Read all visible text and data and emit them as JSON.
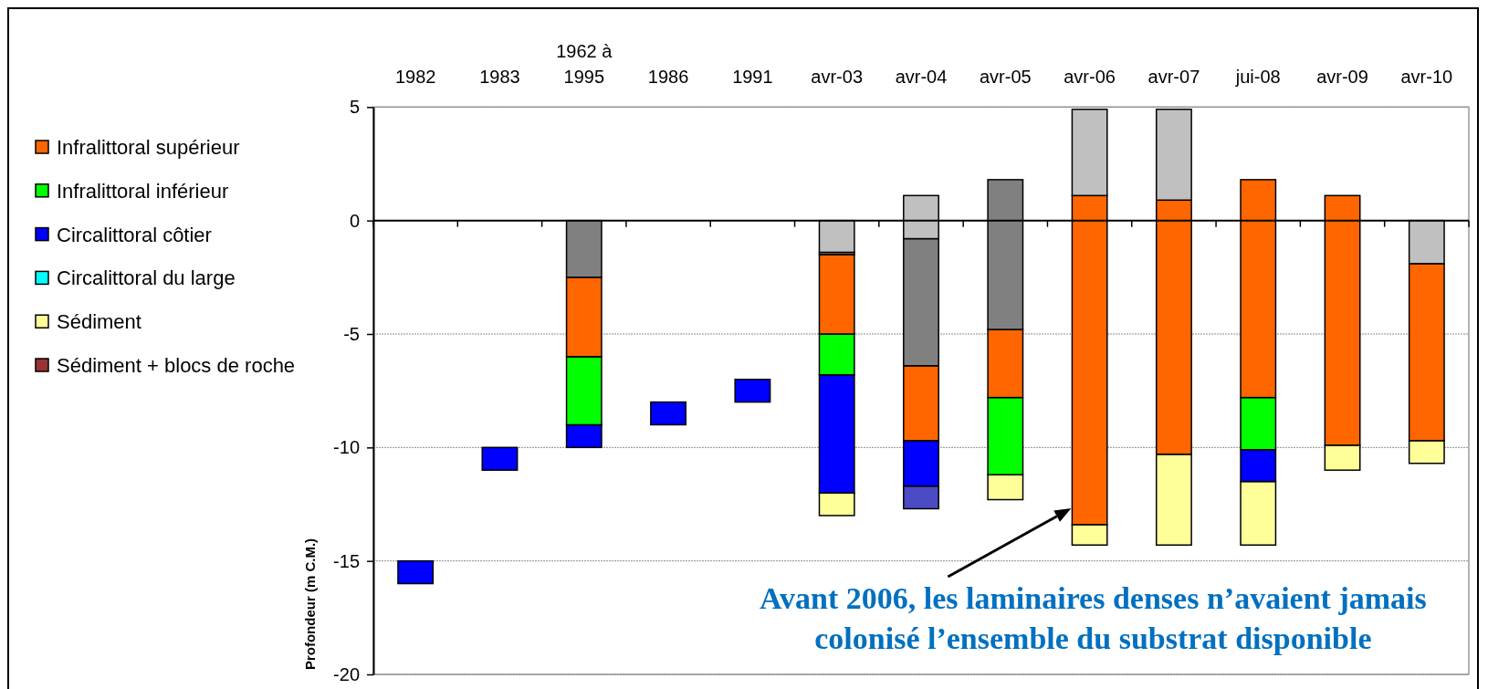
{
  "chart_data": {
    "type": "bar",
    "ylabel": "Profondeur (m C.M.)",
    "categories": [
      "1982",
      "1983",
      "1962 à 1995",
      "1986",
      "1991",
      "avr-03",
      "avr-04",
      "avr-05",
      "avr-06",
      "avr-07",
      "jui-08",
      "avr-09",
      "avr-10"
    ],
    "series": [
      {
        "color": "#4b4bc4",
        "base": [
          null,
          null,
          null,
          null,
          null,
          null,
          -12.7,
          null,
          null,
          null,
          null,
          null,
          null
        ],
        "values": [
          null,
          null,
          null,
          null,
          null,
          null,
          1.0,
          null,
          null,
          null,
          null,
          null,
          null
        ]
      },
      {
        "name": "Sédiment + blocs de roche",
        "color": "#993333",
        "values": [
          null,
          null,
          null,
          null,
          null,
          null,
          null,
          null,
          null,
          null,
          null,
          null,
          null
        ]
      },
      {
        "name": "Sédiment",
        "color": "#ffff99",
        "base": [
          null,
          null,
          null,
          null,
          null,
          -13,
          null,
          -12.3,
          -14.3,
          -14.3,
          -14.3,
          -11,
          -10.7
        ],
        "values": [
          null,
          null,
          null,
          null,
          null,
          1.0,
          null,
          1.1,
          0.9,
          4.0,
          2.8,
          1.1,
          1.0
        ]
      },
      {
        "name": "Circalittoral du large",
        "color": "#00ffff",
        "values": [
          null,
          null,
          null,
          null,
          null,
          null,
          null,
          null,
          null,
          null,
          null,
          null,
          null
        ]
      },
      {
        "name": "Circalittoral côtier",
        "color": "#0000ff",
        "base": [
          -16,
          -11,
          -10,
          -9,
          -8,
          -12,
          -11.7,
          null,
          null,
          null,
          -11.5,
          null,
          null
        ],
        "values": [
          1,
          1,
          1,
          1,
          1,
          5.2,
          2.0,
          null,
          null,
          null,
          1.4,
          null,
          null
        ]
      },
      {
        "name": "Infralittoral inférieur",
        "color": "#00ff00",
        "base": [
          null,
          null,
          -9,
          null,
          null,
          -6.8,
          null,
          -11.2,
          null,
          null,
          -10.1,
          null,
          null
        ],
        "values": [
          null,
          null,
          3,
          null,
          null,
          1.8,
          null,
          3.4,
          null,
          null,
          2.3,
          null,
          null
        ]
      },
      {
        "name": "Infralittoral supérieur",
        "color": "#ff6600",
        "base": [
          null,
          null,
          -6,
          null,
          null,
          -5,
          -9.7,
          -7.8,
          -13.4,
          -10.3,
          -7.8,
          -9.9,
          -9.7
        ],
        "values": [
          null,
          null,
          3.5,
          null,
          null,
          3.5,
          3.3,
          3.0,
          14.5,
          11.2,
          9.6,
          11.0,
          7.8
        ]
      },
      {
        "color": "#808080",
        "base": [
          null,
          null,
          -2.5,
          null,
          null,
          -1.5,
          -6.4,
          -4.8,
          null,
          null,
          null,
          null,
          null
        ],
        "values": [
          null,
          null,
          2.5,
          null,
          null,
          0.1,
          5.6,
          6.6,
          null,
          null,
          null,
          null,
          null
        ]
      },
      {
        "color": "#c0c0c0",
        "base": [
          null,
          null,
          null,
          null,
          null,
          -1.4,
          -0.8,
          null,
          1.1,
          0.9,
          null,
          null,
          -1.9
        ],
        "values": [
          null,
          null,
          null,
          null,
          null,
          1.4,
          1.9,
          null,
          3.8,
          4.0,
          null,
          null,
          1.9
        ]
      }
    ],
    "ylim": [
      -20,
      5
    ],
    "yticks": [
      -20,
      -15,
      -10,
      -5,
      0,
      5
    ],
    "grid": "y",
    "legend": "left",
    "annotations": [
      "Avant 2006, les laminaires denses n’avaient jamais colonisé l’ensemble du substrat disponible"
    ]
  }
}
